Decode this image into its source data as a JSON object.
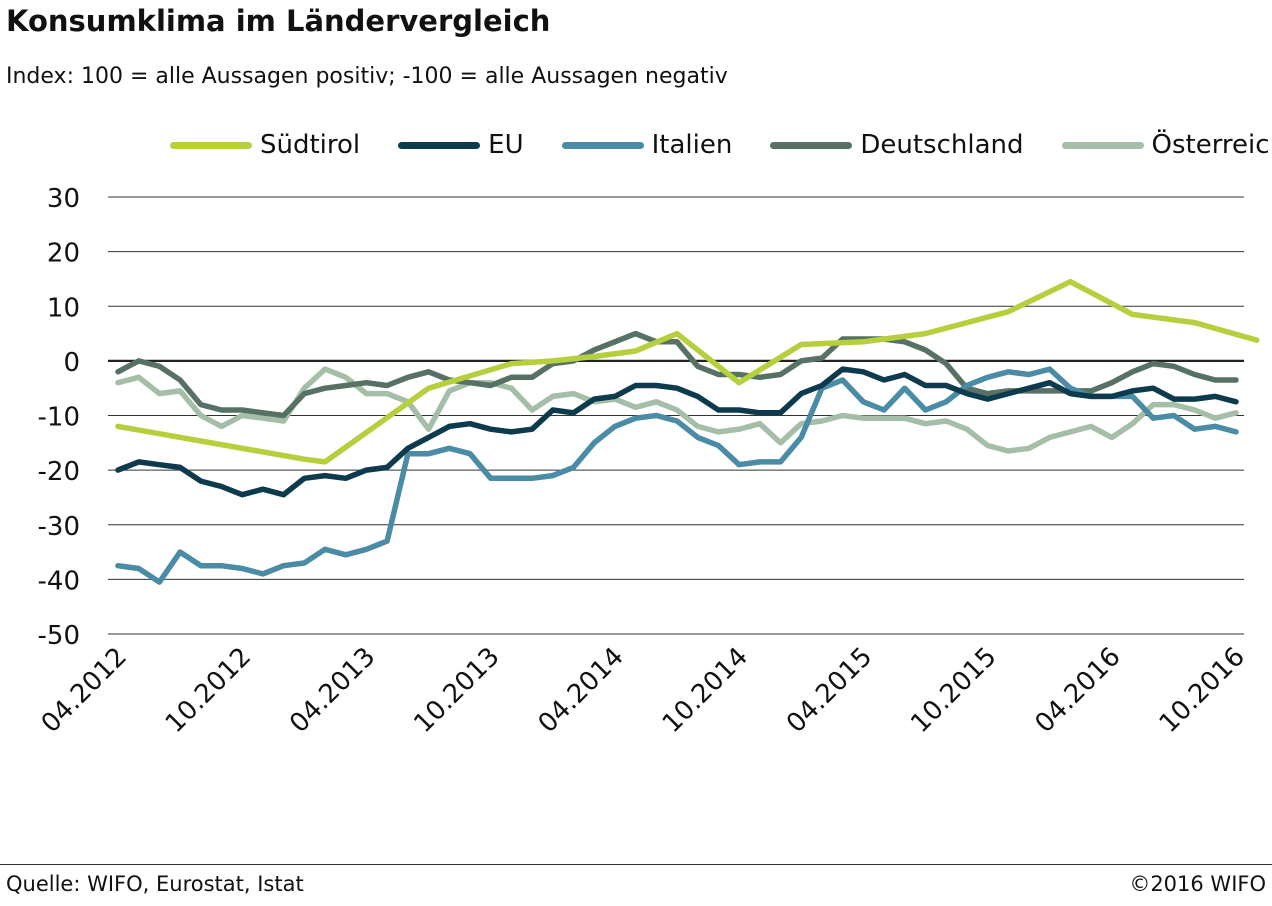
{
  "chart_data": {
    "type": "line",
    "title": "Konsumklima im Ländervergleich",
    "subtitle": "Index: 100 = alle Aussagen positiv; -100 =  alle Aussagen negativ",
    "ylim": [
      -50,
      30
    ],
    "yticks": [
      30,
      20,
      10,
      0,
      -10,
      -20,
      -30,
      -40,
      -50
    ],
    "ytick_labels": [
      "30",
      "20",
      "10",
      "0",
      "-10",
      "-20",
      "-30",
      "-40",
      "-50"
    ],
    "x": [
      "04.2012",
      "05.2012",
      "06.2012",
      "07.2012",
      "08.2012",
      "09.2012",
      "10.2012",
      "11.2012",
      "12.2012",
      "01.2013",
      "02.2013",
      "03.2013",
      "04.2013",
      "05.2013",
      "06.2013",
      "07.2013",
      "08.2013",
      "09.2013",
      "10.2013",
      "11.2013",
      "12.2013",
      "01.2014",
      "02.2014",
      "03.2014",
      "04.2014",
      "05.2014",
      "06.2014",
      "07.2014",
      "08.2014",
      "09.2014",
      "10.2014",
      "11.2014",
      "12.2014",
      "01.2015",
      "02.2015",
      "03.2015",
      "04.2015",
      "05.2015",
      "06.2015",
      "07.2015",
      "08.2015",
      "09.2015",
      "10.2015",
      "11.2015",
      "12.2015",
      "01.2016",
      "02.2016",
      "03.2016",
      "04.2016",
      "05.2016",
      "06.2016",
      "07.2016",
      "08.2016",
      "09.2016",
      "10.2016"
    ],
    "xtick_labels": [
      "04.2012",
      "10.2012",
      "04.2013",
      "10.2013",
      "04.2014",
      "10.2014",
      "04.2015",
      "10.2015",
      "04.2016",
      "10.2016"
    ],
    "xtick_index": [
      0,
      6,
      12,
      18,
      24,
      30,
      36,
      42,
      48,
      54
    ],
    "grid": true,
    "legend_position": "top",
    "series": [
      {
        "name": "Südtirol",
        "color": "#b6cf3c",
        "points": [
          [
            0,
            -12
          ],
          [
            9,
            -18
          ],
          [
            10,
            -18.5
          ],
          [
            15,
            -5
          ],
          [
            19,
            -0.5
          ],
          [
            21,
            0
          ],
          [
            23,
            0.8
          ],
          [
            25,
            1.8
          ],
          [
            27,
            5
          ],
          [
            29,
            -1
          ],
          [
            30,
            -4
          ],
          [
            33,
            3
          ],
          [
            36,
            3.5
          ],
          [
            39,
            5
          ],
          [
            41,
            7
          ],
          [
            43,
            9
          ],
          [
            46,
            14.5
          ],
          [
            49,
            8.5
          ],
          [
            52,
            7
          ],
          [
            55,
            3.8
          ]
        ]
      },
      {
        "name": "EU",
        "color": "#0d3a4d",
        "values": [
          -20,
          -18.5,
          -19,
          -19.5,
          -22,
          -23,
          -24.5,
          -23.5,
          -24.5,
          -21.5,
          -21,
          -21.5,
          -20,
          -19.5,
          -16,
          -14,
          -12,
          -11.5,
          -12.5,
          -13,
          -12.5,
          -9,
          -9.5,
          -7,
          -6.5,
          -4.5,
          -4.5,
          -5,
          -6.5,
          -9,
          -9,
          -9.5,
          -9.5,
          -6,
          -4.5,
          -1.5,
          -2,
          -3.5,
          -2.5,
          -4.5,
          -4.5,
          -6,
          -7,
          -6,
          -5,
          -4,
          -6,
          -6.5,
          -6.5,
          -5.5,
          -5,
          -7,
          -7,
          -6.5,
          -7.5
        ]
      },
      {
        "name": "Italien",
        "color": "#4a8ba5",
        "values": [
          -37.5,
          -38,
          -40.5,
          -35,
          -37.5,
          -37.5,
          -38,
          -39,
          -37.5,
          -37,
          -34.5,
          -35.5,
          -34.5,
          -33,
          -17,
          -17,
          -16,
          -17,
          -21.5,
          -21.5,
          -21.5,
          -21,
          -19.5,
          -15,
          -12,
          -10.5,
          -10,
          -11,
          -14,
          -15.5,
          -19,
          -18.5,
          -18.5,
          -14,
          -5,
          -3.5,
          -7.5,
          -9,
          -5,
          -9,
          -7.5,
          -4.5,
          -3,
          -2,
          -2.5,
          -1.5,
          -5,
          -6.5,
          -6.5,
          -6.5,
          -10.5,
          -10,
          -12.5,
          -12,
          -13
        ]
      },
      {
        "name": "Deutschland",
        "color": "#577264",
        "values": [
          -2,
          0,
          -1,
          -3.5,
          -8,
          -9,
          -9,
          -9.5,
          -10,
          -6,
          -5,
          -4.5,
          -4,
          -4.5,
          -3,
          -2,
          -3.5,
          -4,
          -4.5,
          -3,
          -3,
          -0.5,
          0,
          2,
          3.5,
          5,
          3.5,
          3.5,
          -1,
          -2.5,
          -2.5,
          -3,
          -2.5,
          0,
          0.5,
          4,
          4,
          4,
          3.5,
          2,
          -0.5,
          -5,
          -6,
          -5.5,
          -5.5,
          -5.5,
          -5.5,
          -5.5,
          -4,
          -2,
          -0.5,
          -1,
          -2.5,
          -3.5,
          -3.5
        ]
      },
      {
        "name": "Österreich",
        "color": "#a5bea7",
        "values": [
          -4,
          -3,
          -6,
          -5.5,
          -10,
          -12,
          -10,
          -10.5,
          -11,
          -5,
          -1.5,
          -3,
          -6,
          -6,
          -7.5,
          -12.5,
          -5.5,
          -4,
          -4,
          -5,
          -9,
          -6.5,
          -6,
          -7.5,
          -7,
          -8.5,
          -7.5,
          -9,
          -12,
          -13,
          -12.5,
          -11.5,
          -15,
          -11.5,
          -11,
          -10,
          -10.5,
          -10.5,
          -10.5,
          -11.5,
          -11,
          -12.5,
          -15.5,
          -16.5,
          -16,
          -14,
          -13,
          -12,
          -14,
          -11.5,
          -8,
          -8,
          -9,
          -10.5,
          -9.5
        ]
      }
    ]
  },
  "footer": {
    "source": "Quelle: WIFO, Eurostat, Istat",
    "copyright": "©2016 WIFO"
  }
}
